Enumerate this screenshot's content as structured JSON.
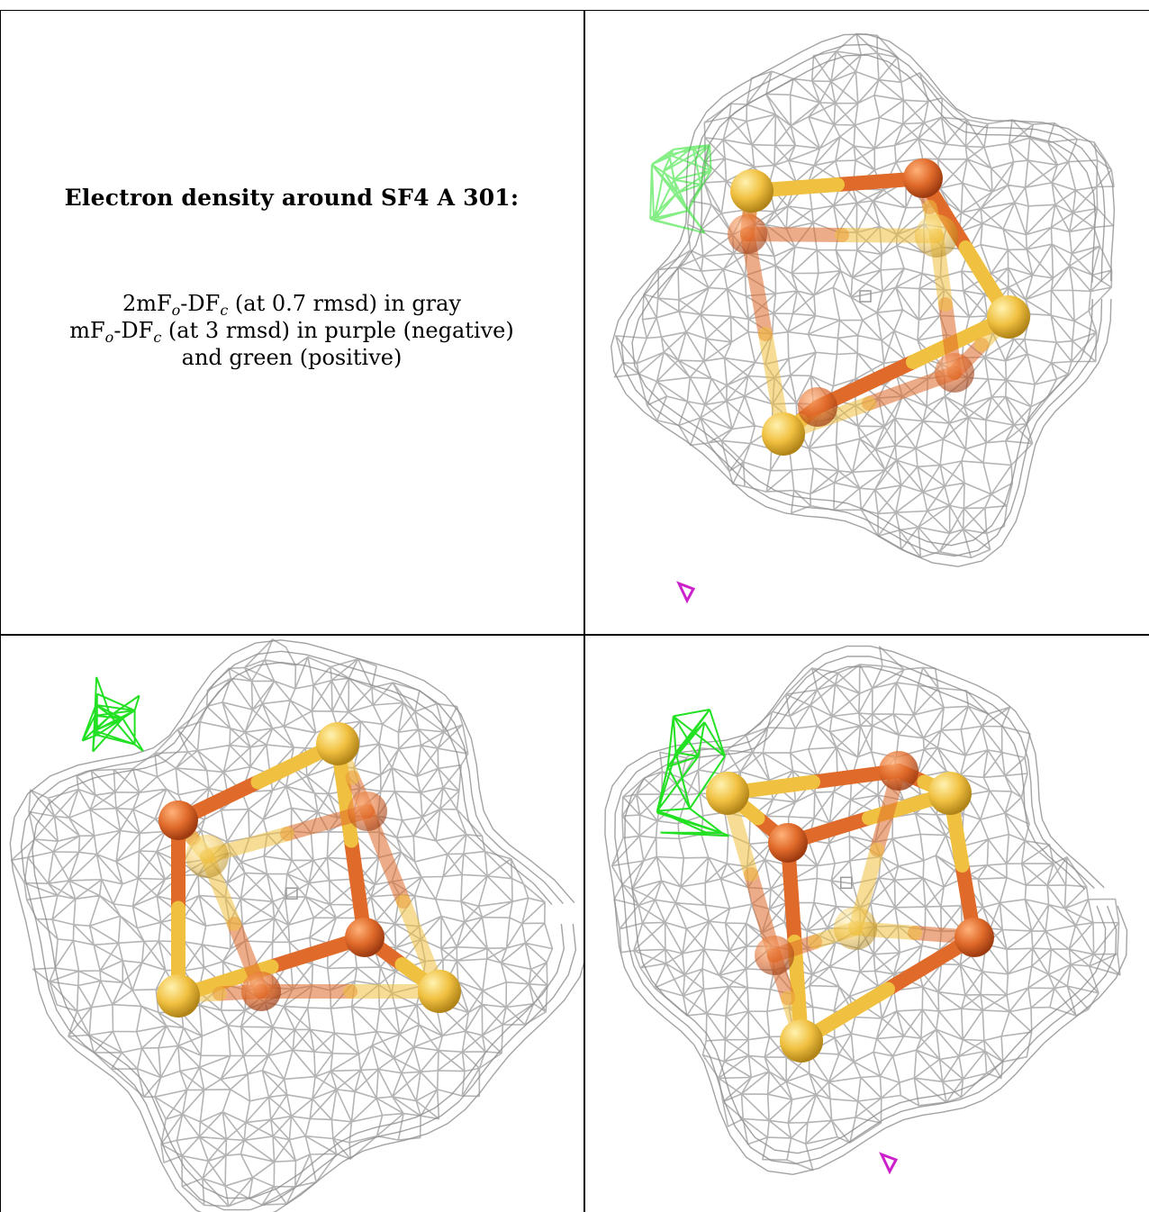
{
  "caption": {
    "title": "Electron density around SF4 A 301:",
    "lines": [
      {
        "pre": "2mF",
        "sub1": "o",
        "mid": "-DF",
        "sub2": "c",
        "post": " (at 0.7 rmsd) in gray"
      },
      {
        "pre": "mF",
        "sub1": "o",
        "mid": "-DF",
        "sub2": "c",
        "post": " (at 3 rmsd) in purple (negative)"
      },
      {
        "text": "and green (positive)"
      }
    ]
  },
  "panels": [
    {
      "name": "view-top-right",
      "view": "view-1"
    },
    {
      "name": "view-bottom-left",
      "view": "view-2"
    },
    {
      "name": "view-bottom-right",
      "view": "view-3"
    }
  ],
  "colors": {
    "mesh_gray": "#b4b4b4",
    "mesh_dark": "#8c8c8c",
    "mesh_green": "#22e022",
    "mesh_purple": "#cc22cc",
    "iron": "#e06a2a",
    "sulfur": "#f0c040",
    "border": "#000000"
  }
}
